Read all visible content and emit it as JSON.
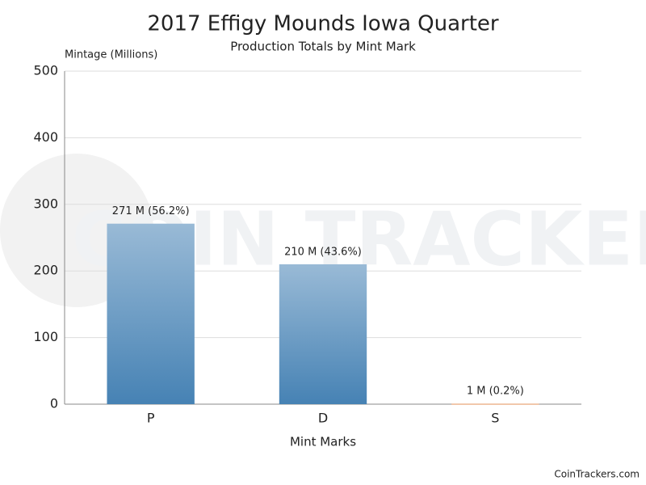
{
  "chart_data": {
    "type": "bar",
    "title": "2017 Effigy Mounds Iowa Quarter",
    "subtitle": "Production Totals by Mint Mark",
    "y_label": "Mintage (Millions)",
    "x_label": "Mint Marks",
    "watermark": "COIN TRACKERS",
    "credit": "CoinTrackers.com",
    "categories": [
      "P",
      "D",
      "S"
    ],
    "values": [
      271,
      210,
      1
    ],
    "value_labels": [
      "271 M (56.2%)",
      "210 M (43.6%)",
      "1 M (0.2%)"
    ],
    "colors": [
      "#4682b4",
      "#4682b4",
      "#e8a070"
    ],
    "ylim": [
      0,
      500
    ],
    "yticks": [
      0,
      100,
      200,
      300,
      400,
      500
    ],
    "grid": true
  }
}
